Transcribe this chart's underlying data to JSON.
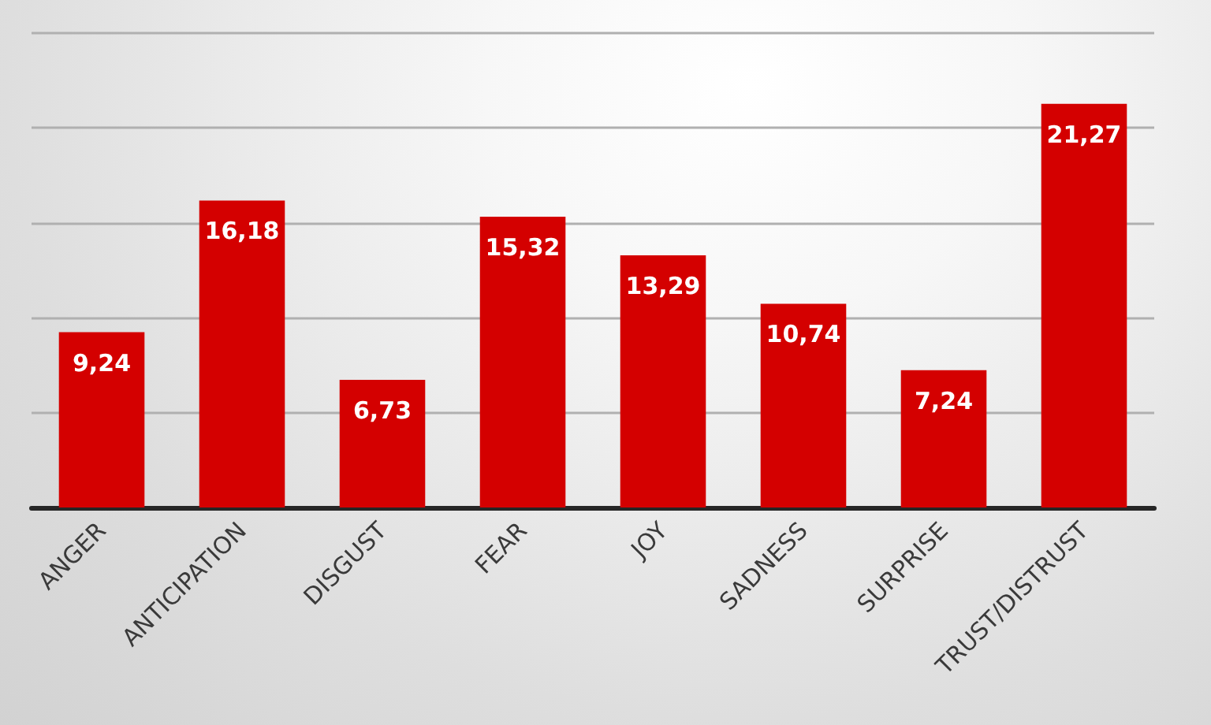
{
  "chart_data": {
    "type": "bar",
    "categories": [
      "ANGER",
      "ANTICIPATION",
      "DISGUST",
      "FEAR",
      "JOY",
      "SADNESS",
      "SURPRISE",
      "TRUST/DISTRUST"
    ],
    "values": [
      9.24,
      16.18,
      6.73,
      15.32,
      13.29,
      10.74,
      7.24,
      21.27
    ],
    "value_labels": [
      "9,24",
      "16,18",
      "6,73",
      "15,32",
      "13,29",
      "10,74",
      "7,24",
      "21,27"
    ],
    "color": "#d40000",
    "ylim": [
      0,
      25
    ],
    "yticks": [
      {
        "value": 0,
        "label": null
      },
      {
        "value": 5,
        "label": null
      },
      {
        "value": 10,
        "label": null
      },
      {
        "value": 15,
        "label": null
      },
      {
        "value": 20,
        "label": null
      },
      {
        "value": 25,
        "label": null
      }
    ],
    "grid": "y",
    "tick_labels": "x"
  }
}
